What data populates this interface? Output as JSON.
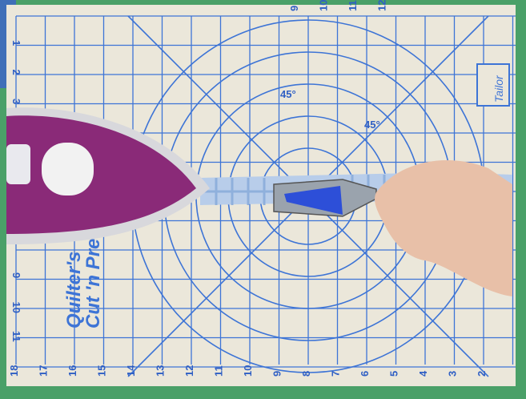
{
  "mat": {
    "brand_lines": [
      "Quilter's",
      "Cut 'n Pres"
    ],
    "logo": "Tailor",
    "angle_labels": [
      "45°",
      "45°"
    ],
    "bottom_ruler": [
      "18",
      "17",
      "16",
      "15",
      "14",
      "13",
      "12",
      "11",
      "10",
      "9",
      "8",
      "7",
      "6",
      "5",
      "4",
      "3",
      "2"
    ],
    "left_ruler_top": [
      "1",
      "2",
      "3"
    ],
    "left_ruler_bottom": [
      "9",
      "10",
      "11"
    ],
    "top_ruler": [
      "9",
      "10",
      "11",
      "12"
    ]
  }
}
